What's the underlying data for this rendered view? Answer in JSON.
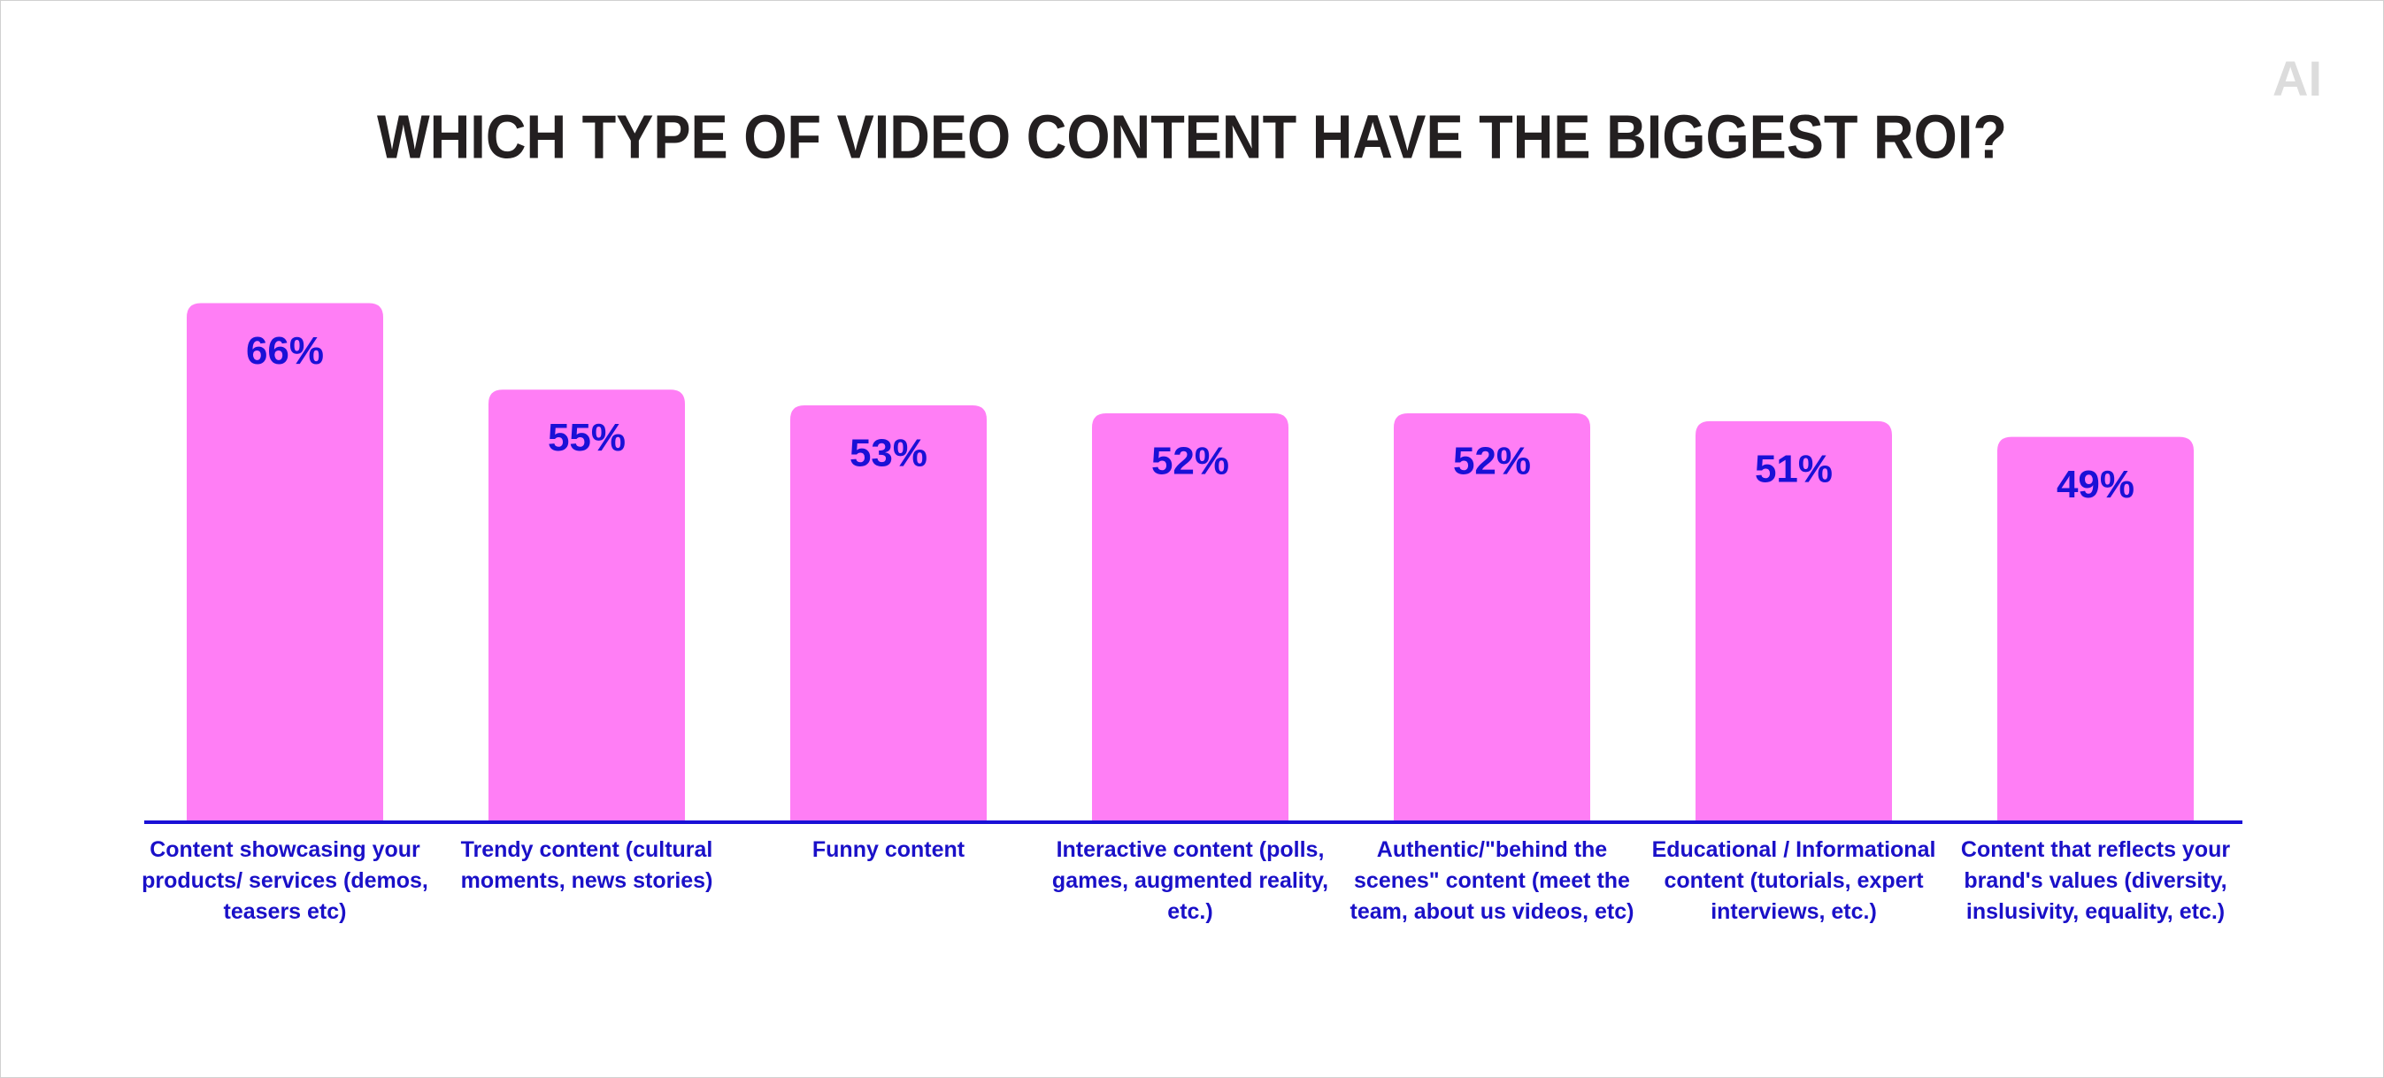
{
  "chart_data": {
    "type": "bar",
    "title": "WHICH TYPE OF VIDEO CONTENT HAVE THE BIGGEST ROI?",
    "categories": [
      "Content showcasing your products/ services (demos, teasers etc)",
      "Trendy content (cultural moments, news stories)",
      "Funny content",
      "Interactive content (polls, games, augmented reality, etc.)",
      "Authentic/\"behind the scenes\" content (meet the team, about us videos, etc)",
      "Educational / Informational content (tutorials, expert interviews, etc.)",
      "Content that reflects your brand's values (diversity, inslusivity, equality, etc.)"
    ],
    "values": [
      66,
      55,
      53,
      52,
      52,
      51,
      49
    ],
    "value_labels": [
      "66%",
      "55%",
      "53%",
      "52%",
      "52%",
      "51%",
      "49%"
    ],
    "color": "#ff7ef5",
    "ylim": [
      0,
      70
    ]
  },
  "logo": "AI"
}
